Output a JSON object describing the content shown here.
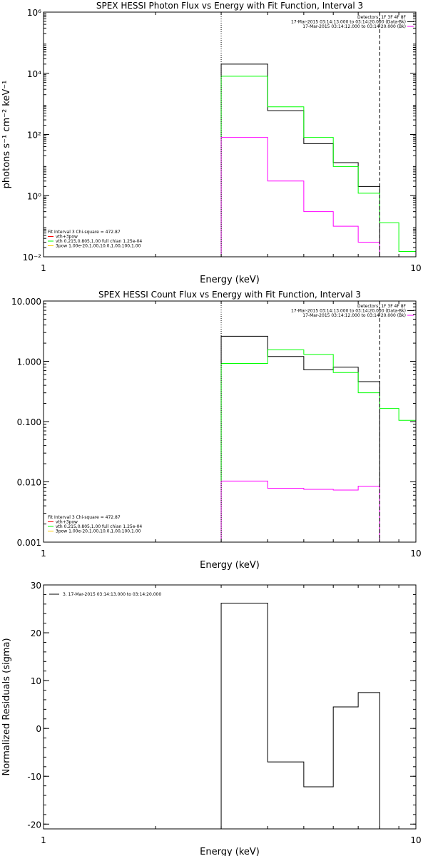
{
  "chart_data": [
    {
      "type": "line",
      "title": "SPEX HESSI Photon Flux vs Energy with Fit Function, Interval 3",
      "xlabel": "Energy (keV)",
      "ylabel": "photons s⁻¹ cm⁻² keV⁻¹",
      "xscale": "log",
      "yscale": "log",
      "xlim": [
        1,
        10
      ],
      "ylim": [
        0.01,
        1000000
      ],
      "x_ticks": [
        {
          "v": 1,
          "label": "1"
        },
        {
          "v": 10,
          "label": "10"
        }
      ],
      "y_ticks": [
        {
          "v": 0.01,
          "label": "10⁻²"
        },
        {
          "v": 1,
          "label": "10⁰"
        },
        {
          "v": 100,
          "label": "10²"
        },
        {
          "v": 10000,
          "label": "10⁴"
        },
        {
          "v": 1000000,
          "label": "10⁶"
        }
      ],
      "vlines": [
        {
          "x": 3.0,
          "style": "dotted"
        },
        {
          "x": 8.0,
          "style": "dashed"
        }
      ],
      "legend_top_right": [
        {
          "text": "Detectors: 1F 3F 4F 8F",
          "color": "#000000"
        },
        {
          "text": "17-Mar-2015 03:14:13.000 to 03:14:20.000 (Data-Bk)",
          "color": "#000000"
        },
        {
          "text": "17-Mar-2015 03:14:12.000 to 03:14:20.000 (Bk)",
          "color": "#ff00ff"
        }
      ],
      "legend_bottom_left": [
        {
          "text": "Fit Interval 3  Chi-square = 472.87",
          "color": ""
        },
        {
          "text": "vth+3pow",
          "color": "#ff0000"
        },
        {
          "text": "vth 0.215,0.805,1.00  full chian 1.25e-04",
          "color": "#00ff00"
        },
        {
          "text": "3pow 1.00e-20,1.00,10.0,1.00,100,1.00",
          "color": "#ffcc00"
        }
      ],
      "series": [
        {
          "edges": [
            3.0,
            4.0,
            5.0,
            6.0,
            7.0,
            8.0
          ],
          "values": [
            20000,
            600,
            50,
            12,
            2
          ],
          "color": "#000000",
          "drop_to": 0.01
        },
        {
          "edges": [
            3.0,
            4.0,
            5.0,
            6.0,
            7.0,
            8.0,
            9.0,
            10.0
          ],
          "values": [
            8000,
            800,
            80,
            9,
            1.2,
            0.13,
            0.015
          ],
          "color": "#00ff00",
          "drop_to": 0.01
        },
        {
          "edges": [
            3.0,
            4.0,
            5.0,
            6.0,
            7.0,
            8.0
          ],
          "values": [
            80,
            3,
            0.3,
            0.1,
            0.03
          ],
          "color": "#ff00ff",
          "drop_to": 0.01
        }
      ]
    },
    {
      "type": "line",
      "title": "SPEX HESSI Count Flux vs Energy with Fit Function, Interval 3",
      "xlabel": "Energy (keV)",
      "ylabel": "",
      "xscale": "log",
      "yscale": "log",
      "xlim": [
        1,
        10
      ],
      "ylim": [
        0.001,
        10
      ],
      "x_ticks": [
        {
          "v": 1,
          "label": "1"
        },
        {
          "v": 10,
          "label": "10"
        }
      ],
      "y_ticks": [
        {
          "v": 0.001,
          "label": "0.001"
        },
        {
          "v": 0.01,
          "label": "0.010"
        },
        {
          "v": 0.1,
          "label": "0.100"
        },
        {
          "v": 1,
          "label": "1.000"
        },
        {
          "v": 10,
          "label": "10.000"
        }
      ],
      "vlines": [
        {
          "x": 3.0,
          "style": "dotted"
        },
        {
          "x": 8.0,
          "style": "dashed"
        }
      ],
      "legend_top_right": [
        {
          "text": "Detectors: 1F 3F 4F 8F",
          "color": "#000000"
        },
        {
          "text": "17-Mar-2015 03:14:13.000 to 03:14:20.000 (Data-Bk)",
          "color": "#000000"
        },
        {
          "text": "17-Mar-2015 03:14:12.000 to 03:14:20.000 (Bk)",
          "color": "#ff00ff"
        }
      ],
      "legend_bottom_left": [
        {
          "text": "Fit Interval 3  Chi-square = 472.87",
          "color": ""
        },
        {
          "text": "vth+3pow",
          "color": "#ff0000"
        },
        {
          "text": "vth 0.215,0.805,1.00  full chian 1.25e-04",
          "color": "#00ff00"
        },
        {
          "text": "3pow 1.00e-20,1.00,10.0,1.00,100,1.00",
          "color": "#ffcc00"
        }
      ],
      "series": [
        {
          "edges": [
            3.0,
            4.0,
            5.0,
            6.0,
            7.0,
            8.0
          ],
          "values": [
            2.6,
            1.2,
            0.72,
            0.8,
            0.46
          ],
          "color": "#000000",
          "drop_to": 0.001
        },
        {
          "edges": [
            3.0,
            4.0,
            5.0,
            6.0,
            7.0,
            8.0,
            9.0,
            10.0
          ],
          "values": [
            0.92,
            1.55,
            1.3,
            0.65,
            0.3,
            0.165,
            0.105
          ],
          "color": "#00ff00",
          "drop_to": 0.001
        },
        {
          "edges": [
            3.0,
            4.0,
            5.0,
            6.0,
            7.0,
            8.0
          ],
          "values": [
            0.0103,
            0.0078,
            0.0075,
            0.0073,
            0.0085
          ],
          "color": "#ff00ff",
          "drop_to": 0.001
        }
      ]
    },
    {
      "type": "line",
      "title": "",
      "xlabel": "Energy (keV)",
      "ylabel": "Normalized Residuals (sigma)",
      "xscale": "log",
      "yscale": "linear",
      "xlim": [
        1,
        10
      ],
      "ylim": [
        -21,
        30
      ],
      "x_ticks": [
        {
          "v": 1,
          "label": "1"
        },
        {
          "v": 10,
          "label": "10"
        }
      ],
      "y_ticks": [
        {
          "v": -20,
          "label": "-20"
        },
        {
          "v": -10,
          "label": "-10"
        },
        {
          "v": 0,
          "label": "0"
        },
        {
          "v": 10,
          "label": "10"
        },
        {
          "v": 20,
          "label": "20"
        },
        {
          "v": 30,
          "label": "30"
        }
      ],
      "vlines": [],
      "legend_top_left": [
        {
          "text": "3. 17-Mar-2015 03:14:13.000 to 03:14:20.000",
          "color": "#000000"
        }
      ],
      "series": [
        {
          "edges": [
            3.0,
            4.0,
            5.0,
            6.0,
            7.0,
            8.0
          ],
          "values": [
            26.2,
            -7.0,
            -12.2,
            4.5,
            7.5
          ],
          "color": "#000000",
          "drop_to": -21
        }
      ]
    }
  ]
}
